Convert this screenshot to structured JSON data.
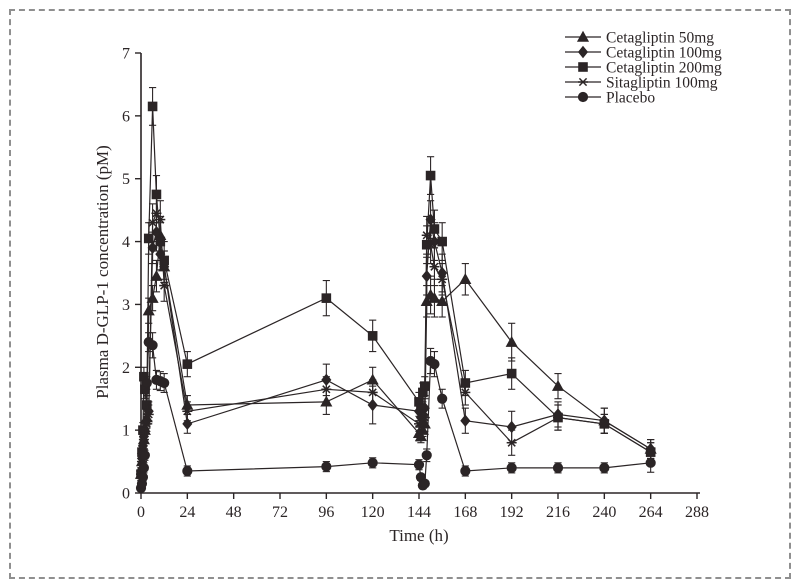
{
  "figure": {
    "background": "#ffffff",
    "border_color": "#8f8f8f",
    "ink": "#2b2526"
  },
  "chart_data": {
    "type": "line",
    "title": "",
    "xlabel": "Time (h)",
    "ylabel": "Plasma D-GLP-1 concentration (pM)",
    "xlim": [
      0,
      288
    ],
    "ylim": [
      0,
      7
    ],
    "x_ticks": [
      0,
      24,
      48,
      72,
      96,
      120,
      144,
      168,
      192,
      216,
      240,
      264,
      288
    ],
    "y_ticks": [
      0,
      1,
      2,
      3,
      4,
      5,
      6,
      7
    ],
    "grid": false,
    "legend_position": "top-right",
    "marker_legend": [
      {
        "marker": "triangle",
        "label": "Cetagliptin 50mg"
      },
      {
        "marker": "diamond",
        "label": "Cetagliptin 100mg"
      },
      {
        "marker": "square",
        "label": "Cetagliptin 200mg"
      },
      {
        "marker": "asterisk",
        "label": "Sitagliptin 100mg"
      },
      {
        "marker": "circle",
        "label": "Placebo"
      }
    ],
    "x": [
      0,
      0.5,
      1,
      1.5,
      2,
      3,
      4,
      6,
      8,
      10,
      12,
      24,
      96,
      120,
      144,
      145,
      146,
      147,
      148,
      150,
      152,
      156,
      168,
      192,
      216,
      240,
      264
    ],
    "series": [
      {
        "name": "Cetagliptin 50mg",
        "marker": "triangle",
        "color": "#2b2526",
        "values": [
          0.3,
          0.5,
          0.7,
          0.85,
          1.0,
          1.2,
          2.9,
          3.1,
          3.45,
          4.1,
          3.6,
          1.4,
          1.45,
          1.8,
          0.95,
          0.9,
          1.0,
          1.1,
          3.05,
          3.15,
          3.1,
          3.05,
          3.4,
          2.4,
          1.7,
          1.15,
          0.7
        ],
        "errors": [
          0.1,
          0.1,
          0.1,
          0.1,
          0.1,
          0.12,
          0.2,
          0.2,
          0.25,
          0.3,
          0.25,
          0.15,
          0.2,
          0.2,
          0.12,
          0.1,
          0.1,
          0.12,
          0.25,
          0.3,
          0.3,
          0.25,
          0.25,
          0.3,
          0.2,
          0.2,
          0.15
        ]
      },
      {
        "name": "Cetagliptin 100mg",
        "marker": "diamond",
        "color": "#2b2526",
        "values": [
          0.35,
          0.55,
          0.75,
          0.9,
          1.0,
          1.15,
          1.3,
          3.9,
          4.15,
          3.8,
          3.6,
          1.1,
          1.8,
          1.4,
          1.3,
          1.2,
          1.25,
          1.35,
          3.45,
          4.35,
          4.0,
          3.5,
          1.15,
          1.05,
          1.25,
          1.15,
          0.7
        ],
        "errors": [
          0.1,
          0.1,
          0.1,
          0.1,
          0.1,
          0.12,
          0.15,
          0.25,
          0.3,
          0.25,
          0.25,
          0.15,
          0.25,
          0.3,
          0.15,
          0.12,
          0.12,
          0.15,
          0.3,
          0.3,
          0.3,
          0.3,
          0.2,
          0.25,
          0.2,
          0.2,
          0.15
        ]
      },
      {
        "name": "Cetagliptin 200mg",
        "marker": "square",
        "color": "#2b2526",
        "values": [
          0.3,
          0.65,
          1.0,
          1.85,
          1.65,
          1.4,
          4.05,
          6.15,
          4.75,
          4.0,
          3.7,
          2.05,
          3.1,
          2.5,
          1.45,
          1.35,
          1.6,
          1.7,
          3.95,
          5.05,
          4.2,
          4.0,
          1.75,
          1.9,
          1.2,
          1.1,
          0.65
        ],
        "errors": [
          0.1,
          0.1,
          0.12,
          0.15,
          0.15,
          0.15,
          0.25,
          0.3,
          0.3,
          0.3,
          0.3,
          0.2,
          0.28,
          0.25,
          0.15,
          0.15,
          0.15,
          0.15,
          0.3,
          0.3,
          0.3,
          0.3,
          0.2,
          0.25,
          0.2,
          0.15,
          0.15
        ]
      },
      {
        "name": "Sitagliptin 100mg",
        "marker": "asterisk",
        "color": "#2b2526",
        "values": [
          0.3,
          0.5,
          0.7,
          0.85,
          0.95,
          1.1,
          1.25,
          4.3,
          4.45,
          4.35,
          3.3,
          1.3,
          1.65,
          1.6,
          1.1,
          1.05,
          1.1,
          1.2,
          4.1,
          3.95,
          3.6,
          3.4,
          1.6,
          0.8,
          1.2,
          1.1,
          0.65
        ],
        "errors": [
          0.1,
          0.1,
          0.1,
          0.1,
          0.1,
          0.12,
          0.15,
          0.3,
          0.3,
          0.3,
          0.25,
          0.15,
          0.2,
          0.2,
          0.12,
          0.1,
          0.12,
          0.12,
          0.3,
          0.3,
          0.3,
          0.25,
          0.2,
          0.2,
          0.2,
          0.15,
          0.15
        ]
      },
      {
        "name": "Placebo",
        "marker": "circle",
        "color": "#2b2526",
        "values": [
          0.08,
          0.15,
          0.25,
          0.4,
          0.6,
          1.75,
          2.4,
          2.35,
          1.8,
          1.78,
          1.75,
          0.35,
          0.42,
          0.48,
          0.45,
          0.25,
          0.12,
          0.15,
          0.6,
          2.1,
          2.05,
          1.5,
          0.35,
          0.4,
          0.4,
          0.4,
          0.48
        ],
        "errors": [
          0.05,
          0.05,
          0.05,
          0.08,
          0.08,
          0.1,
          0.15,
          0.2,
          0.15,
          0.15,
          0.15,
          0.08,
          0.08,
          0.08,
          0.08,
          0.05,
          0.05,
          0.05,
          0.1,
          0.2,
          0.2,
          0.15,
          0.08,
          0.08,
          0.08,
          0.08,
          0.15
        ]
      }
    ]
  }
}
